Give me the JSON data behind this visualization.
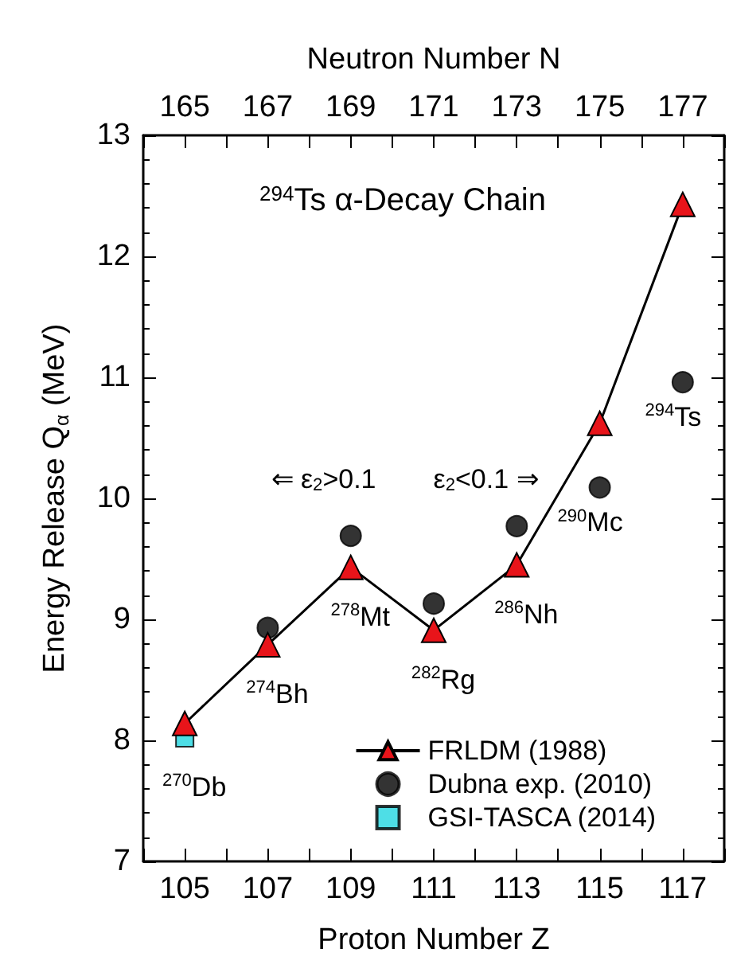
{
  "chart_data": {
    "type": "line",
    "title": "$^{294}$Ts α-Decay Chain",
    "xlabel": "Proton Number Z",
    "x2label": "Neutron Number N",
    "ylabel": "Energy Release Q$_{α}$ (MeV)",
    "xlim": [
      104,
      118
    ],
    "xticks": [
      {
        "value": 104,
        "label": null
      },
      105,
      {
        "value": 106,
        "label": null
      },
      107,
      {
        "value": 108,
        "label": null
      },
      109,
      {
        "value": 110,
        "label": null
      },
      111,
      {
        "value": 112,
        "label": null
      },
      113,
      {
        "value": 114,
        "label": null
      },
      115,
      {
        "value": 116,
        "label": null
      },
      117,
      {
        "value": 118,
        "label": null
      }
    ],
    "x2lim": [
      164,
      178
    ],
    "x2ticks": [
      {
        "value": 164,
        "label": null
      },
      165,
      {
        "value": 166,
        "label": null
      },
      167,
      {
        "value": 168,
        "label": null
      },
      169,
      {
        "value": 170,
        "label": null
      },
      171,
      {
        "value": 172,
        "label": null
      },
      173,
      {
        "value": 174,
        "label": null
      },
      175,
      {
        "value": 176,
        "label": null
      },
      177,
      {
        "value": 178,
        "label": null
      }
    ],
    "ylim": [
      7,
      13
    ],
    "yticks": [
      7,
      8,
      9,
      10,
      11,
      12,
      13
    ],
    "grid": false,
    "legend": "bottom right",
    "series": [
      {
        "name": "FRLDM (1988)",
        "marker": "triangle",
        "color": "#e8141a",
        "x": [
          105,
          107,
          109,
          111,
          113,
          115,
          117
        ],
        "values": [
          8.14,
          8.79,
          9.43,
          8.91,
          9.45,
          10.62,
          12.43
        ]
      },
      {
        "name": "Dubna exp. (2010)",
        "type": "scatter",
        "marker": "circle",
        "color": "#000000",
        "x": [
          107,
          109,
          111,
          113,
          115,
          117
        ],
        "values": [
          8.93,
          9.69,
          9.13,
          9.77,
          10.09,
          10.96
        ]
      },
      {
        "name": "GSI-TASCA (2014)",
        "type": "scatter",
        "marker": "square",
        "color": "#22d6e0",
        "x": [
          105
        ],
        "values": [
          8.02
        ]
      }
    ],
    "annotations": [
      {
        "text": "$^{270}$Db",
        "x": 105,
        "y": 8.02
      },
      {
        "text": "$^{274}$Bh",
        "x": 107,
        "y": 8.79
      },
      {
        "text": "$^{278}$Mt",
        "x": 109,
        "y": 9.43
      },
      {
        "text": "$^{282}$Rg",
        "x": 111,
        "y": 8.91
      },
      {
        "text": "$^{286}$Nh",
        "x": 113,
        "y": 9.45
      },
      {
        "text": "$^{290}$Mc",
        "x": 115,
        "y": 10.09
      },
      {
        "text": "$^{294}$Ts",
        "x": 117,
        "y": 10.96
      },
      "⇐ ε$_{2}$>0.1",
      "ε$_{2}$<0.1 ⇒"
    ]
  }
}
